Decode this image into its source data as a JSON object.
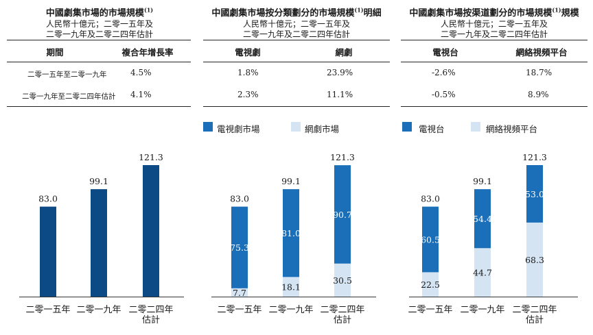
{
  "colors": {
    "dark": "#0b4a85",
    "mid": "#1a6fb8",
    "light": "#d4e4f3",
    "axis": "#333333"
  },
  "panel1": {
    "title": "中國劇集市場的市場規模",
    "title_sup": "(1)",
    "subtitle_1": "人民幣十億元；二零一五年及",
    "subtitle_2": "二零一九年及二零二四年估計",
    "headers": [
      "期間",
      "複合年增長率"
    ],
    "rows": [
      {
        "period": "二零一五年至二零一九年",
        "cagr": "4.5%"
      },
      {
        "period": "二零一九年至二零二四年估計",
        "cagr": "4.1%"
      }
    ]
  },
  "panel2": {
    "title": "中國劇集市場按分類劃分的市場規模",
    "title_sup": "(1)",
    "title_suffix": "明細",
    "subtitle_1": "人民幣十億元；二零一五年及",
    "subtitle_2": "二零一九年及二零二四年估計",
    "headers": [
      "電視劇",
      "網劇"
    ],
    "rows": [
      {
        "a": "1.8%",
        "b": "23.9%"
      },
      {
        "a": "2.3%",
        "b": "11.1%"
      }
    ]
  },
  "panel3": {
    "title": "中國劇集市場按渠道劃分的市場規模",
    "title_sup": "(1)",
    "title_suffix": "規模",
    "subtitle_1": "人民幣十億元；二零一五年及",
    "subtitle_2": "二零一九年及二零二四年估計",
    "headers": [
      "電視台",
      "網絡視頻平台"
    ],
    "rows": [
      {
        "a": "-2.6%",
        "b": "18.7%"
      },
      {
        "a": "-0.5%",
        "b": "8.9%"
      }
    ]
  },
  "chart_data": [
    {
      "type": "bar",
      "categories": [
        "二零一五年",
        "二零一九年",
        "二零二四年\n估計"
      ],
      "series": [
        {
          "values": [
            83.0,
            99.1,
            121.3
          ]
        }
      ],
      "totals": [
        "83.0",
        "99.1",
        "121.3"
      ],
      "ylim": [
        0,
        130
      ]
    },
    {
      "type": "bar",
      "stacked": true,
      "categories": [
        "二零一五年",
        "二零一九年",
        "二零二四年\n估計"
      ],
      "series": [
        {
          "name": "網劇市場",
          "values": [
            7.7,
            18.1,
            30.5
          ],
          "labels": [
            "7.7",
            "18.1",
            "30.5"
          ]
        },
        {
          "name": "電視劇市場",
          "values": [
            75.3,
            81.0,
            90.7
          ],
          "labels": [
            "75.3",
            "81.0",
            "90.7"
          ]
        }
      ],
      "totals": [
        "83.0",
        "99.1",
        "121.3"
      ],
      "legend": [
        "電視劇市場",
        "網劇市場"
      ],
      "ylim": [
        0,
        130
      ]
    },
    {
      "type": "bar",
      "stacked": true,
      "categories": [
        "二零一五年",
        "二零一九年",
        "二零二四年\n估計"
      ],
      "series": [
        {
          "name": "網絡視頻平台",
          "values": [
            22.5,
            44.7,
            68.3
          ],
          "labels": [
            "22.5",
            "44.7",
            "68.3"
          ]
        },
        {
          "name": "電視台",
          "values": [
            60.5,
            54.4,
            53.0
          ],
          "labels": [
            "60.5",
            "54.4",
            "53.0"
          ]
        }
      ],
      "totals": [
        "83.0",
        "99.1",
        "121.3"
      ],
      "legend": [
        "電視台",
        "網絡視頻平台"
      ],
      "ylim": [
        0,
        130
      ]
    }
  ]
}
